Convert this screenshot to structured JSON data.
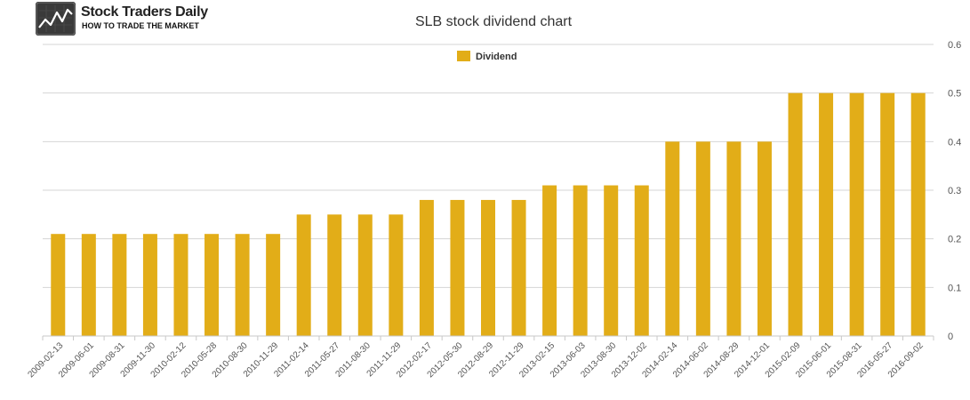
{
  "logo": {
    "brand": "Stock Traders Daily",
    "tagline": "HOW TO TRADE THE MARKET"
  },
  "chart_data": {
    "type": "bar",
    "title": "SLB stock dividend chart",
    "xlabel": "",
    "ylabel": "",
    "legend": {
      "position": "top-center"
    },
    "series": [
      {
        "name": "Dividend",
        "color": "#e2ad18",
        "values": [
          0.21,
          0.21,
          0.21,
          0.21,
          0.21,
          0.21,
          0.21,
          0.21,
          0.25,
          0.25,
          0.25,
          0.25,
          0.28,
          0.28,
          0.28,
          0.28,
          0.31,
          0.31,
          0.31,
          0.31,
          0.4,
          0.4,
          0.4,
          0.4,
          0.5,
          0.5,
          0.5,
          0.5,
          0.5
        ]
      }
    ],
    "categories": [
      "2009-02-13",
      "2009-06-01",
      "2009-08-31",
      "2009-11-30",
      "2010-02-12",
      "2010-05-28",
      "2010-08-30",
      "2010-11-29",
      "2011-02-14",
      "2011-05-27",
      "2011-08-30",
      "2011-11-29",
      "2012-02-17",
      "2012-05-30",
      "2012-08-29",
      "2012-11-29",
      "2013-02-15",
      "2013-06-03",
      "2013-08-30",
      "2013-12-02",
      "2014-02-14",
      "2014-06-02",
      "2014-08-29",
      "2014-12-01",
      "2015-02-09",
      "2015-06-01",
      "2015-08-31",
      "2016-05-27",
      "2016-09-02"
    ],
    "ylim": [
      0,
      0.6
    ],
    "yticks": [
      0,
      0.1,
      0.2,
      0.3,
      0.4,
      0.5,
      0.6
    ],
    "y_axis_side": "right",
    "grid": true,
    "colors": {
      "grid": "#d4d4d4",
      "text": "#555555",
      "title": "#333333"
    }
  }
}
